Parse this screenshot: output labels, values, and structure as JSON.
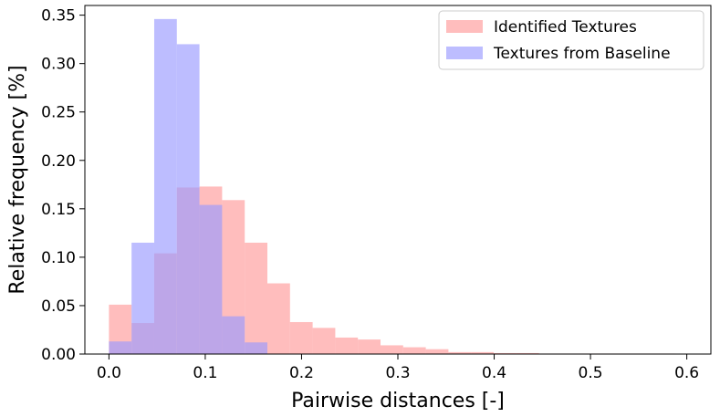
{
  "chart_data": {
    "type": "histogram",
    "xlabel": "Pairwise distances [-]",
    "ylabel": "Relative frequency [%]",
    "xlim": [
      -0.025,
      0.625
    ],
    "ylim": [
      0,
      0.36
    ],
    "xticks": [
      0.0,
      0.1,
      0.2,
      0.3,
      0.4,
      0.5,
      0.6
    ],
    "xtick_labels": [
      "0.0",
      "0.1",
      "0.2",
      "0.3",
      "0.4",
      "0.5",
      "0.6"
    ],
    "yticks": [
      0.0,
      0.05,
      0.1,
      0.15,
      0.2,
      0.25,
      0.3,
      0.35
    ],
    "ytick_labels": [
      "0.00",
      "0.05",
      "0.10",
      "0.15",
      "0.20",
      "0.25",
      "0.30",
      "0.35"
    ],
    "grid": false,
    "legend_position": "top-right",
    "series": [
      {
        "name": "Identified Textures",
        "color": "#ff9999",
        "opacity": 0.65,
        "bin_edges": [
          0.0,
          0.0235,
          0.047,
          0.0705,
          0.094,
          0.1175,
          0.141,
          0.1645,
          0.188,
          0.2115,
          0.235,
          0.2585,
          0.282,
          0.3055,
          0.329,
          0.3525,
          0.376,
          0.3995,
          0.423,
          0.4465,
          0.47,
          0.4935,
          0.517,
          0.5405,
          0.564,
          0.5875
        ],
        "values": [
          0.051,
          0.032,
          0.104,
          0.172,
          0.173,
          0.159,
          0.115,
          0.073,
          0.033,
          0.027,
          0.017,
          0.015,
          0.009,
          0.007,
          0.005,
          0.002,
          0.002,
          0.001,
          0.001,
          0.0005,
          0.0005,
          0.0005,
          0.0005,
          0.0005,
          0.0005
        ]
      },
      {
        "name": "Textures from Baseline",
        "color": "#9999ff",
        "opacity": 0.65,
        "bin_edges": [
          0.0,
          0.0235,
          0.047,
          0.0705,
          0.094,
          0.1175,
          0.141,
          0.1645
        ],
        "values": [
          0.013,
          0.115,
          0.346,
          0.32,
          0.154,
          0.039,
          0.012
        ]
      }
    ]
  }
}
